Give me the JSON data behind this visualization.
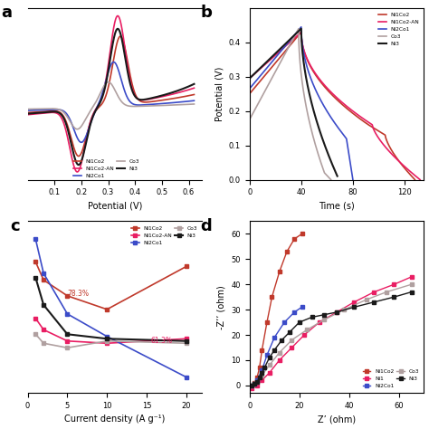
{
  "colors": {
    "Ni1Co2": "#c0392b",
    "Ni1Co2-AN": "#e91e63",
    "Ni2Co1": "#3b4bc8",
    "Co3": "#b0a0a0",
    "Ni3": "#1a1a1a"
  },
  "panel_c_data": {
    "current_density": [
      1,
      2,
      5,
      10,
      20
    ],
    "Ni1Co2": [
      340,
      300,
      265,
      235,
      330
    ],
    "Ni1Co2-AN": [
      215,
      190,
      165,
      160,
      170
    ],
    "Ni2Co1": [
      390,
      315,
      225,
      175,
      85
    ],
    "Co3": [
      180,
      160,
      150,
      165,
      160
    ],
    "Ni3": [
      305,
      245,
      180,
      170,
      165
    ]
  },
  "panel_a_xlabel": "Potential (V)",
  "panel_b_ylabel": "Potential (V)",
  "panel_b_xlabel": "Time (s)",
  "panel_c_xlabel": "Current density (A g⁻¹)",
  "panel_d_xlabel": "Z’ (ohm)",
  "panel_d_ylabel": "-Z’’ (ohm)"
}
